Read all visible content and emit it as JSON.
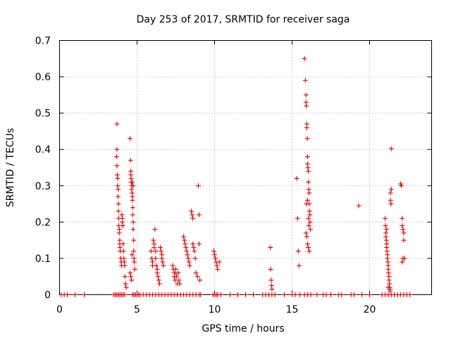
{
  "chart_data": {
    "type": "scatter",
    "title": "Day 253 of 2017, SRMTID for receiver saga",
    "xlabel": "GPS time / hours",
    "ylabel": "SRMTID / TECUs",
    "xlim": [
      0,
      24
    ],
    "ylim": [
      0,
      0.7
    ],
    "xticks": [
      0,
      5,
      10,
      15,
      20
    ],
    "xtick_labels": [
      "0",
      "5",
      "10",
      "15",
      "20"
    ],
    "yticks": [
      0,
      0.1,
      0.2,
      0.3,
      0.4,
      0.5,
      0.6,
      0.7
    ],
    "ytick_labels": [
      "0",
      "0.1",
      "0.2",
      "0.3",
      "0.4",
      "0.5",
      "0.6",
      "0.7"
    ],
    "grid": true,
    "marker": "+",
    "color": "#dd0000",
    "series": [
      {
        "name": "SRMTID",
        "x": [
          0.1,
          0.3,
          0.5,
          1.0,
          1.6,
          3.5,
          3.6,
          3.7,
          3.8,
          3.9,
          4.0,
          4.1,
          4.2,
          4.7,
          4.8,
          4.9,
          5.0,
          5.1,
          5.2,
          5.4,
          5.6,
          5.8,
          6.0,
          6.2,
          6.4,
          6.6,
          6.8,
          7.0,
          7.2,
          7.4,
          7.6,
          7.8,
          8.0,
          8.2,
          8.4,
          8.6,
          8.8,
          9.0,
          9.1,
          9.9,
          10.0,
          10.1,
          10.2,
          10.4,
          11.0,
          11.5,
          12.0,
          12.5,
          13.1,
          13.3,
          13.5,
          13.7,
          13.9,
          14.5,
          15.0,
          15.2,
          15.5,
          15.8,
          16.0,
          16.2,
          16.6,
          17.0,
          17.2,
          17.5,
          18.0,
          18.2,
          18.8,
          19.0,
          19.5,
          20.0,
          20.8,
          21.0,
          21.2,
          21.4,
          21.6,
          21.8,
          22.0,
          22.2,
          22.4,
          22.6,
          3.7,
          3.7,
          3.68,
          3.7,
          3.72,
          3.75,
          3.75,
          3.78,
          3.78,
          3.8,
          3.8,
          3.82,
          3.82,
          3.85,
          3.85,
          3.88,
          3.88,
          3.9,
          3.92,
          3.95,
          3.98,
          4.0,
          4.02,
          4.05,
          4.05,
          4.08,
          4.1,
          4.12,
          4.15,
          4.18,
          4.2,
          4.22,
          4.25,
          4.3,
          4.55,
          4.58,
          4.6,
          4.6,
          4.62,
          4.62,
          4.65,
          4.65,
          4.68,
          4.7,
          4.7,
          4.72,
          4.72,
          4.75,
          4.75,
          4.78,
          4.78,
          4.8,
          4.82,
          4.85,
          4.55,
          4.6,
          4.65,
          4.7,
          4.75,
          4.68,
          5.9,
          5.95,
          6.0,
          6.0,
          6.05,
          6.1,
          6.1,
          6.15,
          6.2,
          6.2,
          6.25,
          6.3,
          6.3,
          6.35,
          6.4,
          6.45,
          6.5,
          6.55,
          6.6,
          6.6,
          6.65,
          6.7,
          7.3,
          7.35,
          7.4,
          7.4,
          7.45,
          7.5,
          7.5,
          7.55,
          7.6,
          7.65,
          7.7,
          7.75,
          8.0,
          8.05,
          8.1,
          8.15,
          8.2,
          8.25,
          8.3,
          8.35,
          8.4,
          8.5,
          8.55,
          8.6,
          8.6,
          8.65,
          8.7,
          8.75,
          8.8,
          8.9,
          8.95,
          9.0,
          9.0,
          9.05,
          9.95,
          10.0,
          10.05,
          10.1,
          10.15,
          10.2,
          10.3,
          13.6,
          13.62,
          13.65,
          13.68,
          13.7,
          15.3,
          15.35,
          15.4,
          15.45,
          15.8,
          15.85,
          15.9,
          15.9,
          15.92,
          15.95,
          15.95,
          15.98,
          16.0,
          16.0,
          16.02,
          16.05,
          16.05,
          16.08,
          16.1,
          16.1,
          16.12,
          16.15,
          16.15,
          16.18,
          15.9,
          15.95,
          16.0,
          16.05,
          16.1,
          16.0,
          16.05,
          15.92,
          16.08,
          19.3,
          21.0,
          21.02,
          21.05,
          21.05,
          21.08,
          21.1,
          21.1,
          21.12,
          21.15,
          21.15,
          21.18,
          21.2,
          21.2,
          21.22,
          21.25,
          21.25,
          21.28,
          21.3,
          21.3,
          21.32,
          21.35,
          21.35,
          21.38,
          21.4,
          21.4,
          21.1,
          21.2,
          22.0,
          22.05,
          22.1,
          22.1,
          22.15,
          22.2,
          22.2,
          22.25,
          22.1,
          22.15
        ],
        "y": [
          0,
          0,
          0,
          0,
          0,
          0,
          0,
          0,
          0,
          0,
          0,
          0,
          0,
          0,
          0,
          0,
          0,
          0,
          0,
          0,
          0,
          0,
          0,
          0,
          0,
          0,
          0,
          0,
          0,
          0,
          0,
          0,
          0,
          0,
          0,
          0,
          0,
          0,
          0,
          0,
          0,
          0,
          0,
          0,
          0,
          0,
          0,
          0,
          0,
          0,
          0,
          0,
          0,
          0,
          0,
          0,
          0,
          0,
          0,
          0,
          0,
          0,
          0,
          0,
          0,
          0,
          0,
          0,
          0,
          0,
          0,
          0,
          0,
          0,
          0,
          0,
          0,
          0,
          0,
          0,
          0.47,
          0.4,
          0.38,
          0.355,
          0.33,
          0.32,
          0.3,
          0.29,
          0.27,
          0.25,
          0.23,
          0.21,
          0.19,
          0.18,
          0.17,
          0.15,
          0.14,
          0.13,
          0.12,
          0.1,
          0.09,
          0.08,
          0.22,
          0.21,
          0.2,
          0.19,
          0.14,
          0.12,
          0.1,
          0.09,
          0.08,
          0.05,
          0.03,
          0.02,
          0.43,
          0.37,
          0.34,
          0.33,
          0.32,
          0.31,
          0.3,
          0.29,
          0.28,
          0.27,
          0.26,
          0.24,
          0.22,
          0.2,
          0.18,
          0.15,
          0.12,
          0.1,
          0.09,
          0.07,
          0.06,
          0.05,
          0.04,
          0.31,
          0.3,
          0.11,
          0.12,
          0.1,
          0.09,
          0.08,
          0.15,
          0.14,
          0.13,
          0.18,
          0.12,
          0.1,
          0.08,
          0.07,
          0.06,
          0.05,
          0.04,
          0.03,
          0.13,
          0.12,
          0.11,
          0.1,
          0.09,
          0.08,
          0.08,
          0.07,
          0.06,
          0.05,
          0.04,
          0.07,
          0.06,
          0.05,
          0.03,
          0.06,
          0.04,
          0.03,
          0.16,
          0.15,
          0.14,
          0.13,
          0.12,
          0.11,
          0.1,
          0.09,
          0.08,
          0.23,
          0.22,
          0.21,
          0.14,
          0.13,
          0.12,
          0.1,
          0.06,
          0.05,
          0.3,
          0.22,
          0.14,
          0.04,
          0.12,
          0.11,
          0.1,
          0.09,
          0.08,
          0.07,
          0.09,
          0.13,
          0.07,
          0.04,
          0.025,
          0.015,
          0.32,
          0.21,
          0.12,
          0.08,
          0.65,
          0.59,
          0.55,
          0.53,
          0.52,
          0.47,
          0.46,
          0.43,
          0.38,
          0.36,
          0.35,
          0.34,
          0.31,
          0.29,
          0.28,
          0.25,
          0.23,
          0.22,
          0.2,
          0.18,
          0.17,
          0.16,
          0.14,
          0.13,
          0.12,
          0.26,
          0.21,
          0.25,
          0.19,
          0.245,
          0.21,
          0.19,
          0.17,
          0.16,
          0.15,
          0.14,
          0.13,
          0.12,
          0.11,
          0.1,
          0.09,
          0.08,
          0.07,
          0.06,
          0.05,
          0.04,
          0.03,
          0.02,
          0.015,
          0.01,
          0.28,
          0.26,
          0.25,
          0.402,
          0.29,
          0.18,
          0.02,
          0.305,
          0.3,
          0.21,
          0.19,
          0.18,
          0.17,
          0.15,
          0.1,
          0.09,
          0.1
        ]
      }
    ]
  }
}
